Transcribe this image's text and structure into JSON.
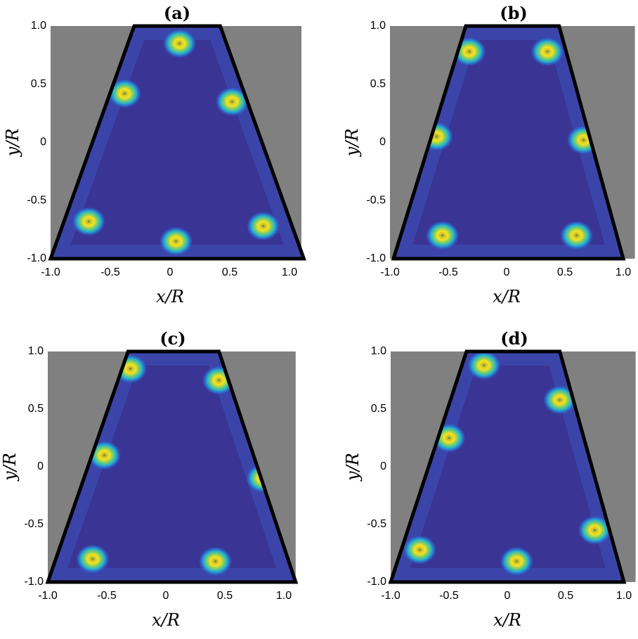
{
  "chart_data": [
    {
      "type": "scatter",
      "title": "(a)",
      "xlabel": "x/R",
      "ylabel": "y/R",
      "x": [
        0.08,
        -0.38,
        0.52,
        -0.68,
        0.05,
        0.78
      ],
      "values": [
        0.85,
        0.42,
        0.35,
        -0.68,
        -0.85,
        -0.72
      ],
      "xlim": [
        -1,
        1.1
      ],
      "ylim": [
        -1,
        1
      ],
      "xticks": [
        {
          "value": -1,
          "label": "-1.0"
        },
        -0.5,
        0,
        0.5,
        {
          "value": 1,
          "label": "1.0"
        }
      ],
      "yticks": [
        {
          "value": 1,
          "label": "1.0"
        },
        0.5,
        0,
        -0.5,
        {
          "value": -1,
          "label": "-1.0"
        }
      ]
    },
    {
      "type": "scatter",
      "title": "(b)",
      "xlabel": "x/R",
      "ylabel": "y/R",
      "x": [
        -0.32,
        0.35,
        -0.6,
        0.66,
        -0.55,
        0.6
      ],
      "values": [
        0.78,
        0.78,
        0.05,
        0.02,
        -0.8,
        -0.8
      ],
      "xlim": [
        -1,
        1.1
      ],
      "ylim": [
        -1,
        1
      ],
      "xticks": [
        {
          "value": -1,
          "label": "-1.0"
        },
        -0.5,
        0,
        0.5,
        {
          "value": 1,
          "label": "1.0"
        }
      ],
      "yticks": [
        {
          "value": 1,
          "label": "1.0"
        },
        0.5,
        0,
        -0.5,
        {
          "value": -1,
          "label": "-1.0"
        }
      ]
    },
    {
      "type": "scatter",
      "title": "(c)",
      "xlabel": "x/R",
      "ylabel": "y/R",
      "x": [
        -0.3,
        0.45,
        -0.52,
        0.82,
        -0.62,
        0.42
      ],
      "values": [
        0.85,
        0.75,
        0.1,
        -0.1,
        -0.8,
        -0.82
      ],
      "xlim": [
        -1,
        1.1
      ],
      "ylim": [
        -1,
        1
      ],
      "xticks": [
        {
          "value": -1,
          "label": "-1.0"
        },
        -0.5,
        0,
        0.5,
        {
          "value": 1,
          "label": "1.0"
        }
      ],
      "yticks": [
        {
          "value": 1,
          "label": "1.0"
        },
        0.5,
        0,
        -0.5,
        {
          "value": -1,
          "label": "-1.0"
        }
      ]
    },
    {
      "type": "scatter",
      "title": "(d)",
      "xlabel": "x/R",
      "ylabel": "y/R",
      "x": [
        -0.2,
        0.45,
        -0.5,
        0.75,
        -0.75,
        0.08
      ],
      "values": [
        0.88,
        0.58,
        0.25,
        -0.55,
        -0.72,
        -0.82
      ],
      "xlim": [
        -1,
        1.1
      ],
      "ylim": [
        -1,
        1
      ],
      "xticks": [
        {
          "value": -1,
          "label": "-1.0"
        },
        -0.5,
        0,
        0.5,
        {
          "value": 1,
          "label": "1.0"
        }
      ],
      "yticks": [
        {
          "value": 1,
          "label": "1.0"
        },
        0.5,
        0,
        -0.5,
        {
          "value": -1,
          "label": "-1.0"
        }
      ]
    }
  ]
}
